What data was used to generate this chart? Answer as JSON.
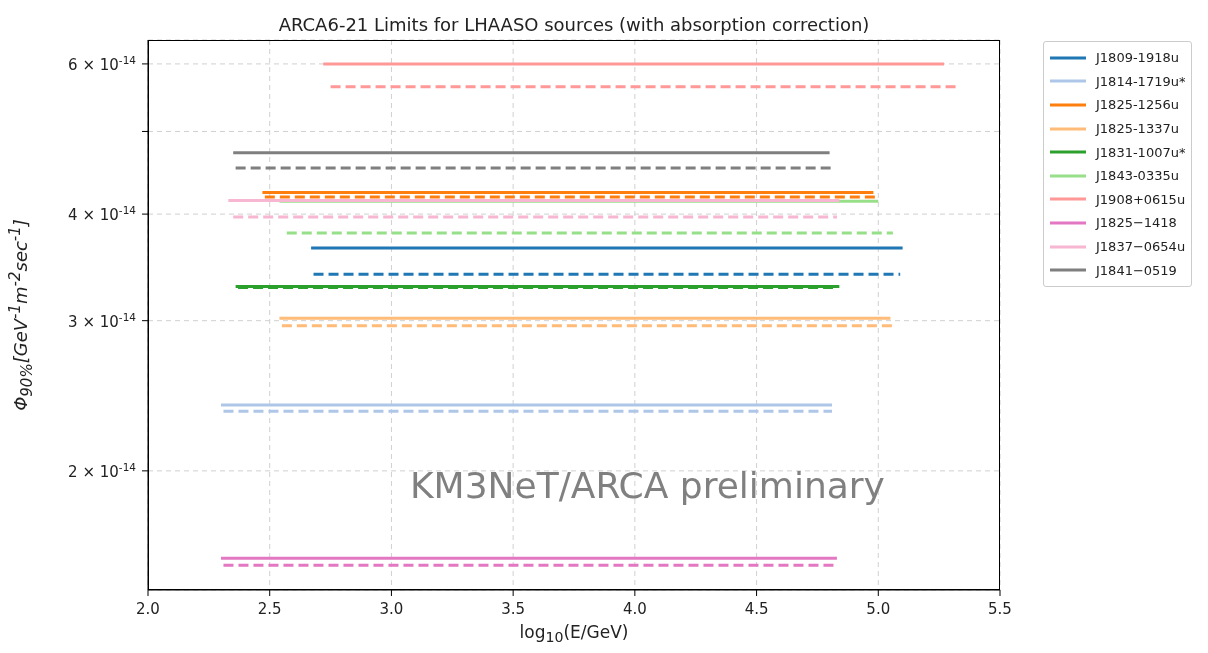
{
  "chart_data": {
    "type": "line",
    "title": "ARCA6-21 Limits for LHAASO sources (with absorption correction)",
    "xlabel": "log$_{10}$(E/GeV)",
    "ylabel": "Φ$_{90%}$[GeV$^{-1}$m$^{-2}$sec$^{-1}$]",
    "annotations": [
      "KM3NeT/ARCA preliminary"
    ],
    "log": "y",
    "grid": true,
    "legend": "top right",
    "xlim": [
      2.0,
      5.5
    ],
    "xticks": [
      {
        "value": 2.0,
        "label": "2.0"
      },
      2.5,
      {
        "value": 3.0,
        "label": "3.0"
      },
      3.5,
      {
        "value": 4.0,
        "label": "4.0"
      },
      4.5,
      {
        "value": 5.0,
        "label": "5.0"
      },
      5.5
    ],
    "ylim": [
      1.45e-14,
      6.4e-14
    ],
    "yticks": [
      {
        "value": 2e-14,
        "label": "2 × 10$^{-14}$"
      },
      {
        "value": 3e-14,
        "label": "3 × 10$^{-14}$"
      },
      {
        "value": 4e-14,
        "label": "4 × 10$^{-14}$"
      },
      {
        "value": 5e-14,
        "label": null
      },
      {
        "value": 6e-14,
        "label": "6 × 10$^{-14}$"
      }
    ],
    "series": [
      {
        "name": "J1809-1918u",
        "color": "#1f77b4",
        "x": [
          2.67,
          5.1
        ],
        "values": [
          3.65e-14,
          3.65e-14
        ]
      },
      {
        "name": "J1814-1719u*",
        "color": "#aec7e8",
        "x": [
          2.3,
          4.81
        ],
        "values": [
          2.39e-14,
          2.39e-14
        ]
      },
      {
        "name": "J1825-1256u",
        "color": "#ff7f0e",
        "x": [
          2.47,
          4.98
        ],
        "values": [
          4.24e-14,
          4.24e-14
        ]
      },
      {
        "name": "J1825-1337u",
        "color": "#ffbb78",
        "x": [
          2.54,
          5.05
        ],
        "values": [
          3.02e-14,
          3.02e-14
        ]
      },
      {
        "name": "J1831-1007u*",
        "color": "#2ca02c",
        "x": [
          2.36,
          4.84
        ],
        "values": [
          3.29e-14,
          3.29e-14
        ]
      },
      {
        "name": "J1843-0335u",
        "color": "#98df8a",
        "x": [
          2.54,
          5.0
        ],
        "values": [
          4.14e-14,
          4.14e-14
        ]
      },
      {
        "name": "J1908+0615u",
        "color": "#ff9896",
        "x": [
          2.72,
          5.27
        ],
        "values": [
          6e-14,
          6e-14
        ]
      },
      {
        "name": "J1825−1418",
        "color": "#e377c2",
        "x": [
          2.3,
          4.83
        ],
        "values": [
          1.58e-14,
          1.58e-14
        ]
      },
      {
        "name": "J1837−0654u",
        "color": "#f7b6d2",
        "x": [
          2.33,
          4.84
        ],
        "values": [
          4.15e-14,
          4.15e-14
        ]
      },
      {
        "name": "J1841−0519",
        "color": "#7f7f7f",
        "x": [
          2.35,
          4.8
        ],
        "values": [
          4.72e-14,
          4.72e-14
        ]
      },
      {
        "color": "#1f77b4",
        "line_style": "dashed",
        "x": [
          2.68,
          5.09
        ],
        "values": [
          3.4e-14,
          3.4e-14
        ]
      },
      {
        "color": "#aec7e8",
        "line_style": "dashed",
        "x": [
          2.31,
          4.81
        ],
        "values": [
          2.35e-14,
          2.35e-14
        ]
      },
      {
        "color": "#ff7f0e",
        "line_style": "dashed",
        "x": [
          2.48,
          4.99
        ],
        "values": [
          4.19e-14,
          4.19e-14
        ]
      },
      {
        "color": "#ffbb78",
        "line_style": "dashed",
        "x": [
          2.55,
          5.07
        ],
        "values": [
          2.96e-14,
          2.96e-14
        ]
      },
      {
        "color": "#2ca02c",
        "line_style": "dashed",
        "x": [
          2.37,
          4.83
        ],
        "values": [
          3.28e-14,
          3.28e-14
        ]
      },
      {
        "color": "#98df8a",
        "line_style": "dashed",
        "x": [
          2.57,
          5.06
        ],
        "values": [
          3.8e-14,
          3.8e-14
        ]
      },
      {
        "color": "#ff9896",
        "line_style": "dashed",
        "x": [
          2.75,
          5.33
        ],
        "values": [
          5.64e-14,
          5.64e-14
        ]
      },
      {
        "color": "#e377c2",
        "line_style": "dashed",
        "x": [
          2.31,
          4.83
        ],
        "values": [
          1.55e-14,
          1.55e-14
        ]
      },
      {
        "color": "#f7b6d2",
        "line_style": "dashed",
        "x": [
          2.35,
          4.83
        ],
        "values": [
          3.97e-14,
          3.97e-14
        ]
      },
      {
        "color": "#7f7f7f",
        "line_style": "dashed",
        "x": [
          2.36,
          4.82
        ],
        "values": [
          4.53e-14,
          4.53e-14
        ]
      }
    ]
  }
}
